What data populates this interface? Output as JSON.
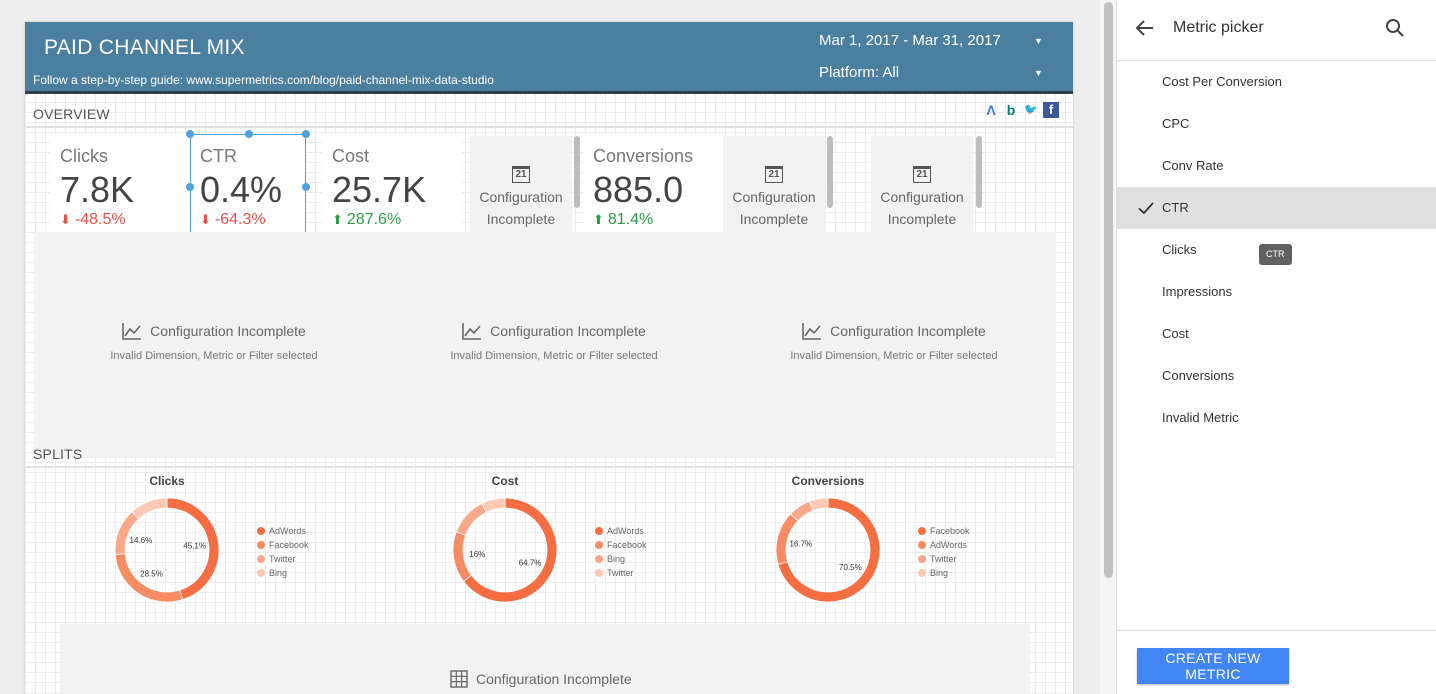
{
  "report": {
    "title": "PAID CHANNEL MIX",
    "subtitle": "Follow a step-by-step guide: www.supermetrics.com/blog/paid-channel-mix-data-studio",
    "date_range": "Mar 1, 2017 - Mar 31, 2017",
    "platform_filter": "Platform: All",
    "platform_logos": [
      "adwords-icon",
      "bing-icon",
      "twitter-icon",
      "facebook-icon"
    ]
  },
  "overview": {
    "label": "OVERVIEW",
    "scorecards": [
      {
        "label": "Clicks",
        "value": "7.8K",
        "delta": "-48.5%",
        "direction": "down"
      },
      {
        "label": "CTR",
        "value": "0.4%",
        "delta": "-64.3%",
        "direction": "down"
      },
      {
        "label": "Cost",
        "value": "25.7K",
        "delta": "287.6%",
        "direction": "up"
      },
      {
        "label": "Conversions",
        "value": "885.0",
        "delta": "81.4%",
        "direction": "up"
      }
    ],
    "config_cards": [
      {
        "icon": "21",
        "line1": "Configuration",
        "line2": "Incomplete"
      },
      {
        "icon": "21",
        "line1": "Configuration",
        "line2": "Incomplete"
      },
      {
        "icon": "21",
        "line1": "Configuration",
        "line2": "Incomplete"
      }
    ],
    "timeseries": [
      {
        "title": "Configuration Incomplete",
        "subtitle": "Invalid Dimension, Metric or Filter selected"
      },
      {
        "title": "Configuration Incomplete",
        "subtitle": "Invalid Dimension, Metric or Filter selected"
      },
      {
        "title": "Configuration Incomplete",
        "subtitle": "Invalid Dimension, Metric or Filter selected"
      }
    ]
  },
  "splits": {
    "label": "SPLITS",
    "table_placeholder": "Configuration Incomplete"
  },
  "chart_data": [
    {
      "type": "pie",
      "title": "Clicks",
      "categories": [
        "AdWords",
        "Facebook",
        "Twitter",
        "Bing"
      ],
      "values": [
        45.1,
        28.5,
        14.6,
        11.8
      ],
      "labels": [
        "45.1%",
        "28.5%",
        "14.6%",
        ""
      ]
    },
    {
      "type": "pie",
      "title": "Cost",
      "categories": [
        "AdWords",
        "Facebook",
        "Bing",
        "Twitter"
      ],
      "values": [
        64.7,
        16,
        12,
        7.3
      ],
      "labels": [
        "64.7%",
        "16%",
        "",
        ""
      ]
    },
    {
      "type": "pie",
      "title": "Conversions",
      "categories": [
        "Facebook",
        "AdWords",
        "Twitter",
        "Bing"
      ],
      "values": [
        70.5,
        16.7,
        7,
        5.8
      ],
      "labels": [
        "70.5%",
        "16.7%",
        "",
        ""
      ]
    }
  ],
  "colors": {
    "series": [
      "#f46d43",
      "#f78b63",
      "#f9a98a",
      "#fcc9b4"
    ],
    "header_bg": "#4a7fa0",
    "negative": "#e5534b",
    "positive": "#2e9b4a",
    "accent_button": "#4285f4"
  },
  "picker": {
    "title": "Metric picker",
    "back_icon": "arrow-back-icon",
    "search_icon": "search-icon",
    "items": [
      {
        "label": "Cost Per Conversion",
        "selected": false
      },
      {
        "label": "CPC",
        "selected": false
      },
      {
        "label": "Conv Rate",
        "selected": false
      },
      {
        "label": "CTR",
        "selected": true
      },
      {
        "label": "Clicks",
        "selected": false
      },
      {
        "label": "Impressions",
        "selected": false
      },
      {
        "label": "Cost",
        "selected": false
      },
      {
        "label": "Conversions",
        "selected": false
      },
      {
        "label": "Invalid Metric",
        "selected": false
      }
    ],
    "tooltip": "CTR",
    "create_button": "CREATE NEW METRIC"
  }
}
